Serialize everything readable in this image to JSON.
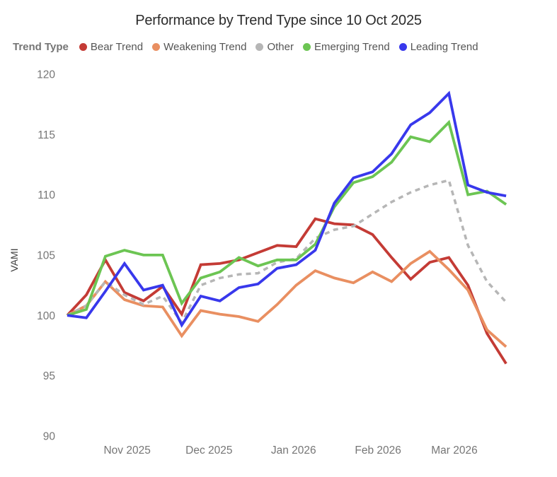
{
  "title": "Performance by Trend Type since 10 Oct 2025",
  "legend": {
    "label": "Trend Type",
    "position": "top-left"
  },
  "chart_data": {
    "type": "line",
    "title": "Performance by Trend Type since 10 Oct 2025",
    "xlabel": "",
    "ylabel": "VAMI",
    "x_unit": "weeks since 10 Oct 2025",
    "x_weeks": [
      0,
      1,
      2,
      3,
      4,
      5,
      6,
      7,
      8,
      9,
      10,
      11,
      12,
      13,
      14,
      15,
      16,
      17,
      18,
      19,
      20,
      21,
      22,
      23
    ],
    "x_tick_labels": [
      "Nov 2025",
      "Dec 2025",
      "Jan 2026",
      "Feb 2026",
      "Mar 2026"
    ],
    "x_tick_positions_weeks": [
      3.14,
      7.43,
      11.86,
      16.29,
      20.29
    ],
    "y_ticks": [
      90,
      95,
      100,
      105,
      110,
      115,
      120
    ],
    "ylim": [
      90,
      120
    ],
    "grid": false,
    "legend_position": "top-left",
    "series": [
      {
        "name": "Bear Trend",
        "color": "#c43b35",
        "style": "solid",
        "values": [
          100,
          101.7,
          104.6,
          101.9,
          101.2,
          102.4,
          100.1,
          104.2,
          104.3,
          104.6,
          105.2,
          105.8,
          105.7,
          108.0,
          107.6,
          107.5,
          106.7,
          104.8,
          103.0,
          104.4,
          104.8,
          102.5,
          98.5,
          96.0
        ]
      },
      {
        "name": "Weakening Trend",
        "color": "#e98f61",
        "style": "solid",
        "values": [
          100,
          100.8,
          102.8,
          101.3,
          100.8,
          100.7,
          98.3,
          100.4,
          100.1,
          99.9,
          99.5,
          100.9,
          102.5,
          103.7,
          103.1,
          102.7,
          103.6,
          102.8,
          104.3,
          105.3,
          103.8,
          102.1,
          98.8,
          97.4
        ]
      },
      {
        "name": "Other",
        "color": "#b6b6b6",
        "style": "dashed",
        "values": [
          100,
          100.8,
          102.8,
          101.7,
          100.9,
          101.6,
          99.4,
          102.5,
          103.1,
          103.4,
          103.5,
          104.4,
          104.7,
          106.4,
          107.1,
          107.4,
          108.4,
          109.4,
          110.2,
          110.8,
          111.2,
          105.8,
          102.8,
          101.1
        ]
      },
      {
        "name": "Emerging Trend",
        "color": "#6cc553",
        "style": "solid",
        "values": [
          100,
          100.5,
          104.9,
          105.4,
          105.0,
          105.0,
          101.0,
          103.1,
          103.6,
          104.8,
          104.1,
          104.6,
          104.6,
          105.9,
          109.0,
          111.0,
          111.5,
          112.7,
          114.8,
          114.4,
          116.0,
          110.0,
          110.3,
          109.2
        ]
      },
      {
        "name": "Leading Trend",
        "color": "#3838ec",
        "style": "solid",
        "values": [
          100,
          99.8,
          102.0,
          104.3,
          102.1,
          102.5,
          99.2,
          101.6,
          101.2,
          102.3,
          102.6,
          103.9,
          104.2,
          105.4,
          109.3,
          111.4,
          111.9,
          113.4,
          115.8,
          116.8,
          118.4,
          110.8,
          110.2,
          109.9
        ]
      }
    ]
  }
}
